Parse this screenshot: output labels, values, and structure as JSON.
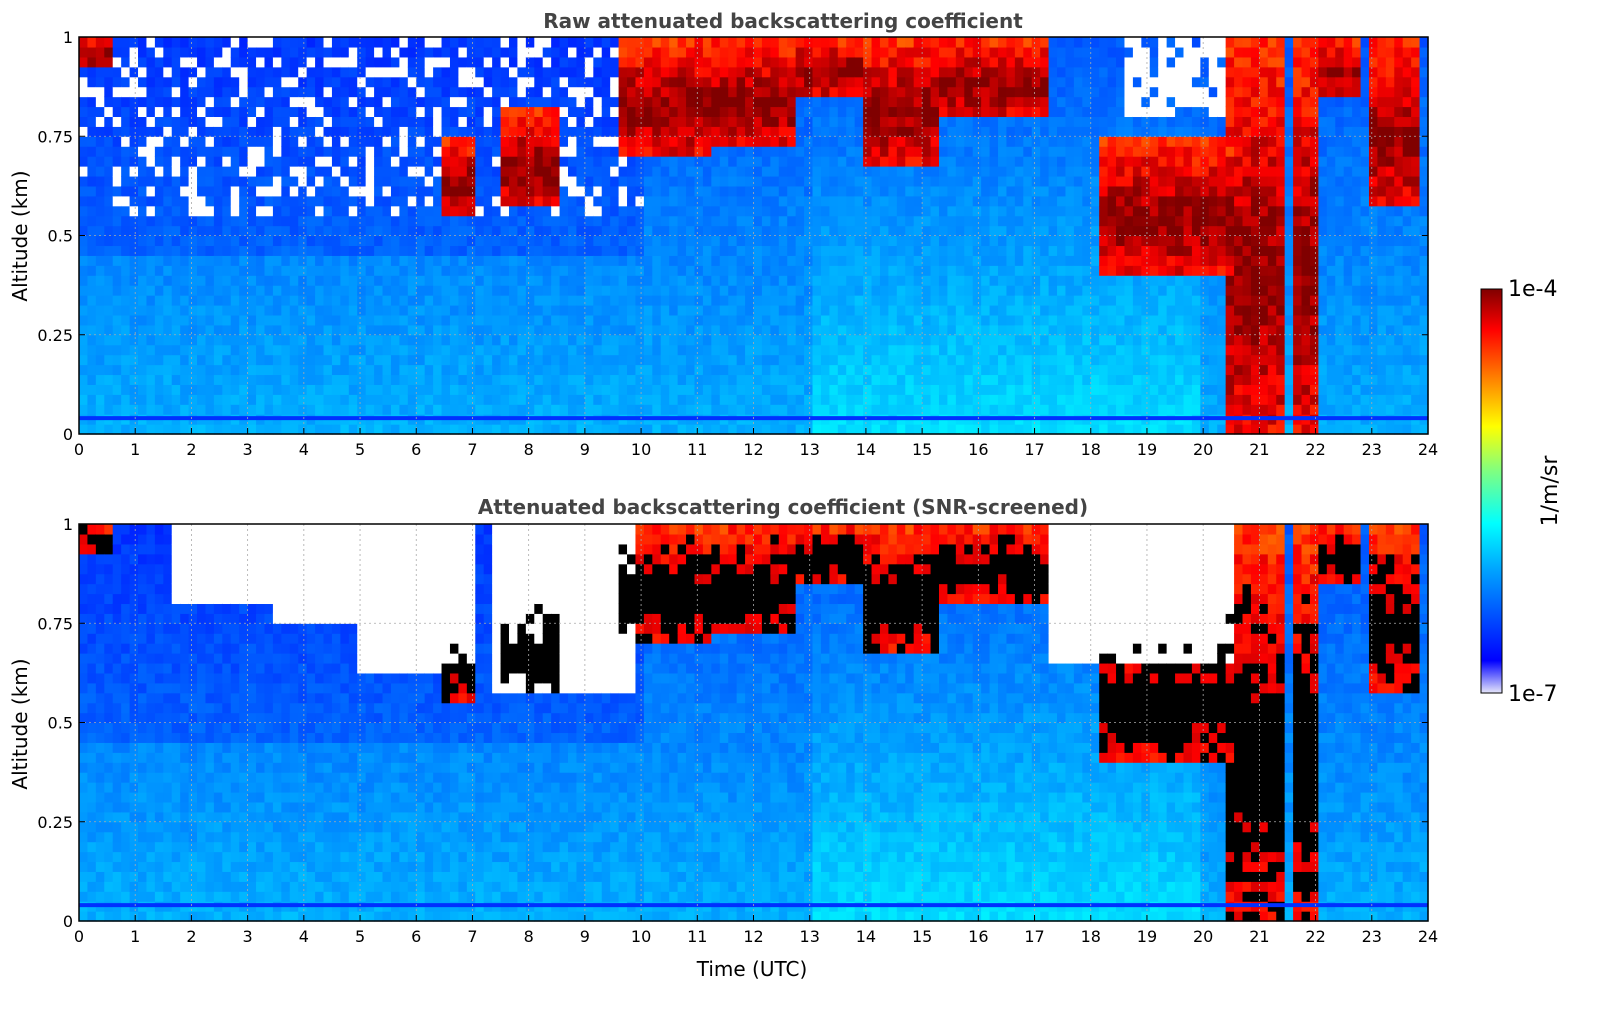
{
  "chart_data": [
    {
      "type": "heatmap",
      "title": "Raw attenuated backscattering coefficient",
      "xlabel": "",
      "ylabel": "Altitude (km)",
      "xlim": [
        0,
        24
      ],
      "ylim": [
        0,
        1
      ],
      "x_ticks": [
        "0",
        "1",
        "2",
        "3",
        "4",
        "5",
        "6",
        "7",
        "8",
        "9",
        "10",
        "11",
        "12",
        "13",
        "14",
        "15",
        "16",
        "17",
        "18",
        "19",
        "20",
        "21",
        "22",
        "23",
        "24"
      ],
      "y_ticks": [
        "0",
        "0.25",
        "0.5",
        "0.75",
        "1"
      ],
      "grid": true,
      "screening": "none",
      "cloud_regions": [
        {
          "t0": 0.0,
          "t1": 0.6,
          "base_km": 0.92,
          "top_km": 1.0
        },
        {
          "t0": 6.5,
          "t1": 7.0,
          "base_km": 0.55,
          "top_km": 0.75
        },
        {
          "t0": 7.5,
          "t1": 8.6,
          "base_km": 0.58,
          "top_km": 0.82
        },
        {
          "t0": 9.6,
          "t1": 11.2,
          "base_km": 0.7,
          "top_km": 1.0
        },
        {
          "t0": 11.2,
          "t1": 12.8,
          "base_km": 0.72,
          "top_km": 1.0
        },
        {
          "t0": 12.8,
          "t1": 14.0,
          "base_km": 0.85,
          "top_km": 1.0
        },
        {
          "t0": 14.0,
          "t1": 15.3,
          "base_km": 0.68,
          "top_km": 1.0
        },
        {
          "t0": 15.3,
          "t1": 17.2,
          "base_km": 0.8,
          "top_km": 1.0
        },
        {
          "t0": 18.1,
          "t1": 20.5,
          "base_km": 0.4,
          "top_km": 0.75
        },
        {
          "t0": 20.4,
          "t1": 21.4,
          "base_km": 0.0,
          "top_km": 1.0
        },
        {
          "t0": 21.6,
          "t1": 22.0,
          "base_km": 0.0,
          "top_km": 1.0
        },
        {
          "t0": 21.9,
          "t1": 22.8,
          "base_km": 0.85,
          "top_km": 1.0
        },
        {
          "t0": 23.0,
          "t1": 23.9,
          "base_km": 0.58,
          "top_km": 1.0
        }
      ]
    },
    {
      "type": "heatmap",
      "title": "Attenuated backscattering coefficient (SNR-screened)",
      "xlabel": "Time (UTC)",
      "ylabel": "Altitude (km)",
      "xlim": [
        0,
        24
      ],
      "ylim": [
        0,
        1
      ],
      "x_ticks": [
        "0",
        "1",
        "2",
        "3",
        "4",
        "5",
        "6",
        "7",
        "8",
        "9",
        "10",
        "11",
        "12",
        "13",
        "14",
        "15",
        "16",
        "17",
        "18",
        "19",
        "20",
        "21",
        "22",
        "23",
        "24"
      ],
      "y_ticks": [
        "0",
        "0.25",
        "0.5",
        "0.75",
        "1"
      ],
      "grid": true,
      "screening": "SNR",
      "screened_regions": [
        {
          "t0": 1.6,
          "t1": 3.6,
          "base_km": 0.8,
          "top_km": 1.0
        },
        {
          "t0": 3.4,
          "t1": 5.0,
          "base_km": 0.75,
          "top_km": 1.0
        },
        {
          "t0": 5.0,
          "t1": 7.1,
          "base_km": 0.62,
          "top_km": 1.0
        },
        {
          "t0": 7.3,
          "t1": 9.9,
          "base_km": 0.58,
          "top_km": 1.0
        },
        {
          "t0": 17.3,
          "t1": 20.6,
          "base_km": 0.66,
          "top_km": 1.0
        }
      ]
    }
  ],
  "colorbar": {
    "label": "1/m/sr",
    "max_label": "1e-4",
    "min_label": "1e-7",
    "scale": "log",
    "min": 1e-07,
    "max": 0.0001,
    "colormap": "jet",
    "colors": [
      "#e6e6fa",
      "#0000ff",
      "#00a0ff",
      "#00ffff",
      "#80ff80",
      "#ffff00",
      "#ff8000",
      "#ff0000",
      "#800000"
    ]
  }
}
